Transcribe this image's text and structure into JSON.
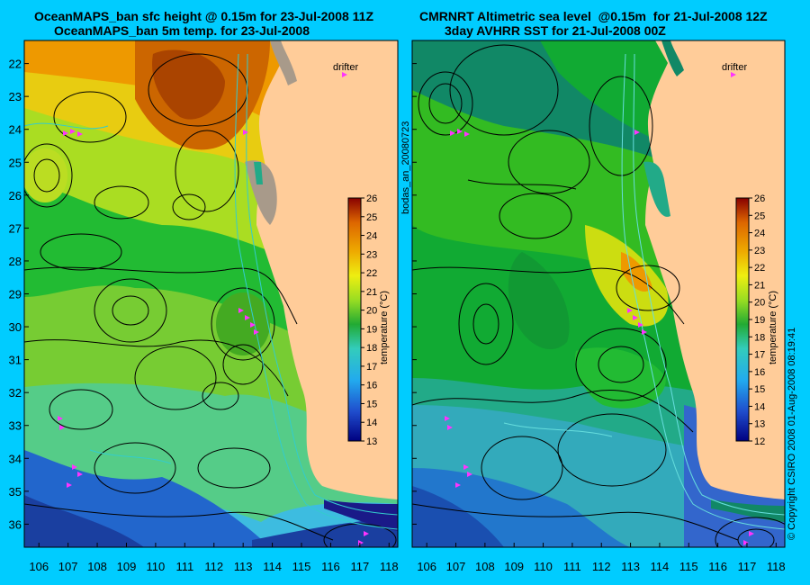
{
  "panels": [
    {
      "title_line1": "OceanMAPS_ban sfc height @ 0.15m for 23-Jul-2008 11Z",
      "title_line2": "OceanMAPS_ban 5m temp. for 23-Jul-2008",
      "drifter_label": "drifter",
      "colorbar": {
        "label": "temperature (°C)",
        "min": 13,
        "max": 26,
        "ticks": [
          13,
          14,
          15,
          16,
          17,
          18,
          19,
          20,
          21,
          22,
          23,
          24,
          25,
          26
        ]
      }
    },
    {
      "title_line1": "CMRNRT Altimetric sea level  @0.15m  for 21-Jul-2008 12Z",
      "title_line2": "3day AVHRR SST for 21-Jul-2008 00Z",
      "drifter_label": "drifter",
      "colorbar": {
        "label": "temperature (°C)",
        "min": 12,
        "max": 26,
        "ticks": [
          12,
          13,
          14,
          15,
          16,
          17,
          18,
          19,
          20,
          21,
          22,
          23,
          24,
          25,
          26
        ]
      }
    }
  ],
  "axes": {
    "lon_ticks": [
      106,
      107,
      108,
      109,
      110,
      111,
      112,
      113,
      114,
      115,
      116,
      117,
      118
    ],
    "lat_ticks": [
      22,
      23,
      24,
      25,
      26,
      27,
      28,
      29,
      30,
      31,
      32,
      33,
      34,
      35,
      36
    ],
    "lon_range": [
      105.5,
      118.3
    ],
    "lat_range": [
      21.3,
      36.7
    ]
  },
  "side_labels": {
    "mid": "bodas_an_20080723",
    "right": "© Copyright CSIRO 2008   01-Aug-2008 08:19:41"
  },
  "colors": {
    "background": "#00ccff",
    "land": "#ffcc99",
    "drifter": "#ff33ff",
    "contour": "#000000",
    "bathymetry": "#33cccc"
  }
}
